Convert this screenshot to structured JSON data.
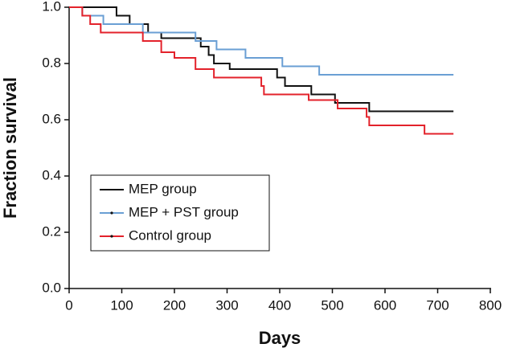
{
  "chart_data": {
    "type": "line",
    "step": true,
    "xlabel": "Days",
    "ylabel": "Fraction survival",
    "xlim": [
      0,
      800
    ],
    "xticks": [
      0,
      100,
      200,
      300,
      400,
      500,
      600,
      700,
      800
    ],
    "ylim": [
      0,
      1
    ],
    "yticks": [
      {
        "value": 0,
        "label": "0.0"
      },
      {
        "value": 0.2,
        "label": "0.2"
      },
      {
        "value": 0.4,
        "label": "0.4"
      },
      {
        "value": 0.6,
        "label": "0.6"
      },
      {
        "value": 0.8,
        "label": "0.8"
      },
      {
        "value": 1,
        "label": "1.0"
      }
    ],
    "grid": false,
    "legend": "lower left",
    "series": [
      {
        "name": "MEP group",
        "color": "#111111",
        "x": [
          0,
          90,
          90,
          115,
          115,
          150,
          150,
          175,
          175,
          250,
          250,
          265,
          265,
          275,
          275,
          305,
          305,
          395,
          395,
          410,
          410,
          460,
          460,
          505,
          505,
          570,
          570,
          730
        ],
        "values": [
          1,
          1,
          0.97,
          0.97,
          0.94,
          0.94,
          0.91,
          0.91,
          0.89,
          0.89,
          0.86,
          0.86,
          0.83,
          0.83,
          0.8,
          0.8,
          0.78,
          0.78,
          0.75,
          0.75,
          0.72,
          0.72,
          0.69,
          0.69,
          0.66,
          0.66,
          0.63,
          0.63
        ]
      },
      {
        "name": "MEP + PST group",
        "color": "#6a9fd4",
        "x": [
          0,
          25,
          25,
          65,
          65,
          140,
          140,
          240,
          240,
          280,
          280,
          335,
          335,
          405,
          405,
          475,
          475,
          730
        ],
        "values": [
          1,
          1,
          0.97,
          0.97,
          0.94,
          0.94,
          0.91,
          0.91,
          0.88,
          0.88,
          0.85,
          0.85,
          0.82,
          0.82,
          0.79,
          0.79,
          0.76,
          0.76
        ]
      },
      {
        "name": "Control group",
        "color": "#e3222b",
        "x": [
          0,
          25,
          25,
          40,
          40,
          60,
          60,
          140,
          140,
          175,
          175,
          200,
          200,
          240,
          240,
          275,
          275,
          365,
          365,
          370,
          370,
          455,
          455,
          510,
          510,
          565,
          565,
          570,
          570,
          675,
          675,
          730
        ],
        "values": [
          1,
          1,
          0.97,
          0.97,
          0.94,
          0.94,
          0.91,
          0.91,
          0.88,
          0.88,
          0.84,
          0.84,
          0.82,
          0.82,
          0.78,
          0.78,
          0.75,
          0.75,
          0.72,
          0.72,
          0.69,
          0.69,
          0.67,
          0.67,
          0.64,
          0.64,
          0.61,
          0.61,
          0.58,
          0.58,
          0.55,
          0.55
        ]
      }
    ]
  }
}
